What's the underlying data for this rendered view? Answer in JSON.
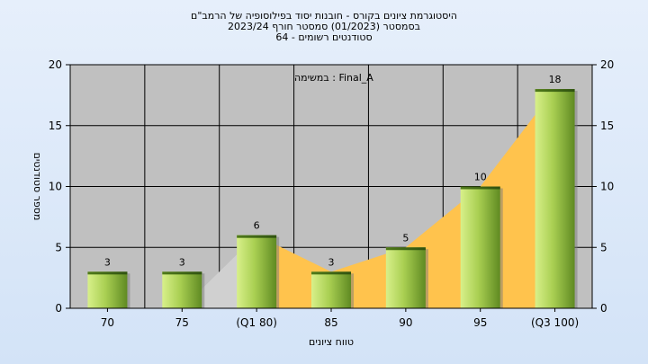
{
  "title_lines": [
    "היסטוגרמת ציונים בקורס - חובנות יסוד בפילוסופיה של הרמב\"ם",
    "בסמסטר  (01/2023)  סמסטר חורף  2023/24",
    "סטודנטים רשומים - 64"
  ],
  "chart_data": {
    "type": "bar",
    "categories": [
      "70",
      "75",
      "(Q1 80)",
      "85",
      "90",
      "95",
      "(Q3 100)"
    ],
    "values": [
      3,
      3,
      6,
      3,
      5,
      10,
      18
    ],
    "xlabel": "טווח ציונים",
    "ylabel": "מספר סטודנטים",
    "ylim": [
      0,
      20
    ],
    "yticks": [
      0,
      5,
      10,
      15,
      20
    ],
    "right_axis": true,
    "grid": true,
    "annotation": "במשימה : Final_A",
    "colors": {
      "plot_bg": "#c0c0c0",
      "bar_light": "#d8f08a",
      "bar_dark": "#5f8a22",
      "area": "#ffc34d",
      "page_bg": "#dce9f9"
    }
  }
}
